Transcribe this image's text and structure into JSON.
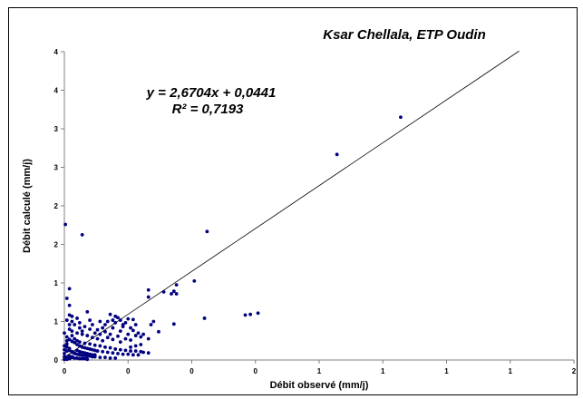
{
  "chart_data": {
    "type": "scatter",
    "title": "Ksar Chellala, ETP Oudin",
    "xlabel": "Débit observé (mm/j)",
    "ylabel": "Débit calculé (mm/j)",
    "xlim": [
      0,
      2
    ],
    "ylim": [
      0,
      4.8
    ],
    "x_tick_labels": [
      "0",
      "0",
      "0",
      "0",
      "1",
      "1",
      "1",
      "1",
      "2"
    ],
    "y_tick_labels": [
      "0",
      "1",
      "1",
      "2",
      "2",
      "3",
      "3",
      "4",
      "4"
    ],
    "grid": false,
    "legend": "none",
    "annotations": {
      "equation": "y = 2,6704x + 0,0441",
      "r2": "R² = 0,7193"
    },
    "trendline": {
      "slope": 2.6704,
      "intercept": 0.0441,
      "x_range": [
        0,
        1.785
      ]
    },
    "series": [
      {
        "color": "#000080",
        "points": [
          [
            1.32,
            3.78
          ],
          [
            1.07,
            3.2
          ],
          [
            0.004,
            2.11
          ],
          [
            0.07,
            1.95
          ],
          [
            0.56,
            2.0
          ],
          [
            0.51,
            1.23
          ],
          [
            0.44,
            1.17
          ],
          [
            0.43,
            1.07
          ],
          [
            0.42,
            1.03
          ],
          [
            0.44,
            1.03
          ],
          [
            0.39,
            1.06
          ],
          [
            0.33,
            1.09
          ],
          [
            0.33,
            0.98
          ],
          [
            0.55,
            0.65
          ],
          [
            0.71,
            0.7
          ],
          [
            0.73,
            0.71
          ],
          [
            0.76,
            0.73
          ],
          [
            0.43,
            0.56
          ],
          [
            0.35,
            0.6
          ],
          [
            0.34,
            0.55
          ],
          [
            0.37,
            0.44
          ],
          [
            0.02,
            1.11
          ],
          [
            0.01,
            0.96
          ],
          [
            0.02,
            0.85
          ],
          [
            0.09,
            0.75
          ],
          [
            0.05,
            0.65
          ],
          [
            0.1,
            0.62
          ],
          [
            0.14,
            0.6
          ],
          [
            0.18,
            0.71
          ],
          [
            0.2,
            0.68
          ],
          [
            0.21,
            0.66
          ],
          [
            0.19,
            0.62
          ],
          [
            0.24,
            0.58
          ],
          [
            0.28,
            0.55
          ],
          [
            0.23,
            0.52
          ],
          [
            0.16,
            0.55
          ],
          [
            0.19,
            0.5
          ],
          [
            0.22,
            0.45
          ],
          [
            0.25,
            0.4
          ],
          [
            0.28,
            0.38
          ],
          [
            0.3,
            0.36
          ],
          [
            0.33,
            0.33
          ],
          [
            0.02,
            0.7
          ],
          [
            0.03,
            0.6
          ],
          [
            0.04,
            0.55
          ],
          [
            0.06,
            0.5
          ],
          [
            0.02,
            0.48
          ],
          [
            0.03,
            0.45
          ],
          [
            0.05,
            0.42
          ],
          [
            0.07,
            0.4
          ],
          [
            0.09,
            0.38
          ],
          [
            0.11,
            0.35
          ],
          [
            0.13,
            0.33
          ],
          [
            0.15,
            0.3
          ],
          [
            0.12,
            0.42
          ],
          [
            0.14,
            0.4
          ],
          [
            0.03,
            0.38
          ],
          [
            0.04,
            0.33
          ],
          [
            0.05,
            0.3
          ],
          [
            0.06,
            0.28
          ],
          [
            0.08,
            0.26
          ],
          [
            0.1,
            0.25
          ],
          [
            0.12,
            0.23
          ],
          [
            0.14,
            0.22
          ],
          [
            0.16,
            0.2
          ],
          [
            0.18,
            0.19
          ],
          [
            0.2,
            0.17
          ],
          [
            0.22,
            0.16
          ],
          [
            0.24,
            0.15
          ],
          [
            0.26,
            0.14
          ],
          [
            0.01,
            0.36
          ],
          [
            0.02,
            0.32
          ],
          [
            0.03,
            0.29
          ],
          [
            0.04,
            0.27
          ],
          [
            0.05,
            0.24
          ],
          [
            0.06,
            0.22
          ],
          [
            0.07,
            0.2
          ],
          [
            0.08,
            0.19
          ],
          [
            0.09,
            0.18
          ],
          [
            0.1,
            0.17
          ],
          [
            0.11,
            0.16
          ],
          [
            0.12,
            0.15
          ],
          [
            0.13,
            0.14
          ],
          [
            0.15,
            0.13
          ],
          [
            0.17,
            0.12
          ],
          [
            0.19,
            0.11
          ],
          [
            0.21,
            0.1
          ],
          [
            0.23,
            0.09
          ],
          [
            0.25,
            0.09
          ],
          [
            0.27,
            0.08
          ],
          [
            0.29,
            0.08
          ],
          [
            0.01,
            0.25
          ],
          [
            0.01,
            0.2
          ],
          [
            0.02,
            0.18
          ],
          [
            0.02,
            0.15
          ],
          [
            0.03,
            0.13
          ],
          [
            0.03,
            0.12
          ],
          [
            0.04,
            0.11
          ],
          [
            0.04,
            0.1
          ],
          [
            0.05,
            0.09
          ],
          [
            0.06,
            0.08
          ],
          [
            0.07,
            0.07
          ],
          [
            0.08,
            0.07
          ],
          [
            0.09,
            0.06
          ],
          [
            0.1,
            0.06
          ],
          [
            0.11,
            0.05
          ],
          [
            0.12,
            0.05
          ],
          [
            0.14,
            0.04
          ],
          [
            0.16,
            0.04
          ],
          [
            0.18,
            0.03
          ],
          [
            0.2,
            0.03
          ],
          [
            0.05,
            0.15
          ],
          [
            0.06,
            0.13
          ],
          [
            0.07,
            0.12
          ],
          [
            0.08,
            0.11
          ],
          [
            0.09,
            0.1
          ],
          [
            0.1,
            0.09
          ],
          [
            0.11,
            0.08
          ],
          [
            0.12,
            0.08
          ],
          [
            0.0,
            0.1
          ],
          [
            0.0,
            0.05
          ],
          [
            0.01,
            0.04
          ],
          [
            0.01,
            0.03
          ],
          [
            0.02,
            0.02
          ],
          [
            0.02,
            0.06
          ],
          [
            0.03,
            0.05
          ],
          [
            0.03,
            0.04
          ],
          [
            0.04,
            0.03
          ],
          [
            0.05,
            0.03
          ],
          [
            0.06,
            0.02
          ],
          [
            0.07,
            0.02
          ],
          [
            0.08,
            0.02
          ],
          [
            0.09,
            0.01
          ],
          [
            0.0,
            0.01
          ],
          [
            0.01,
            0.01
          ],
          [
            0.0,
            0.16
          ],
          [
            0.01,
            0.14
          ],
          [
            0.0,
            0.22
          ],
          [
            0.01,
            0.3
          ],
          [
            0.0,
            0.42
          ],
          [
            0.02,
            0.55
          ],
          [
            0.01,
            0.62
          ],
          [
            0.03,
            0.68
          ],
          [
            0.06,
            0.58
          ],
          [
            0.08,
            0.52
          ],
          [
            0.1,
            0.48
          ],
          [
            0.16,
            0.44
          ],
          [
            0.18,
            0.4
          ],
          [
            0.21,
            0.37
          ],
          [
            0.24,
            0.33
          ],
          [
            0.26,
            0.31
          ],
          [
            0.17,
            0.35
          ],
          [
            0.19,
            0.32
          ],
          [
            0.22,
            0.28
          ],
          [
            0.31,
            0.12
          ],
          [
            0.33,
            0.11
          ],
          [
            0.28,
            0.14
          ],
          [
            0.3,
            0.13
          ],
          [
            0.26,
            0.2
          ],
          [
            0.28,
            0.22
          ],
          [
            0.3,
            0.24
          ],
          [
            0.27,
            0.46
          ],
          [
            0.29,
            0.42
          ],
          [
            0.31,
            0.4
          ],
          [
            0.15,
            0.5
          ],
          [
            0.13,
            0.47
          ],
          [
            0.11,
            0.55
          ],
          [
            0.17,
            0.6
          ],
          [
            0.22,
            0.62
          ],
          [
            0.25,
            0.64
          ],
          [
            0.27,
            0.63
          ],
          [
            0.2,
            0.58
          ],
          [
            0.23,
            0.55
          ],
          [
            0.26,
            0.5
          ],
          [
            0.07,
            0.45
          ]
        ]
      }
    ]
  }
}
